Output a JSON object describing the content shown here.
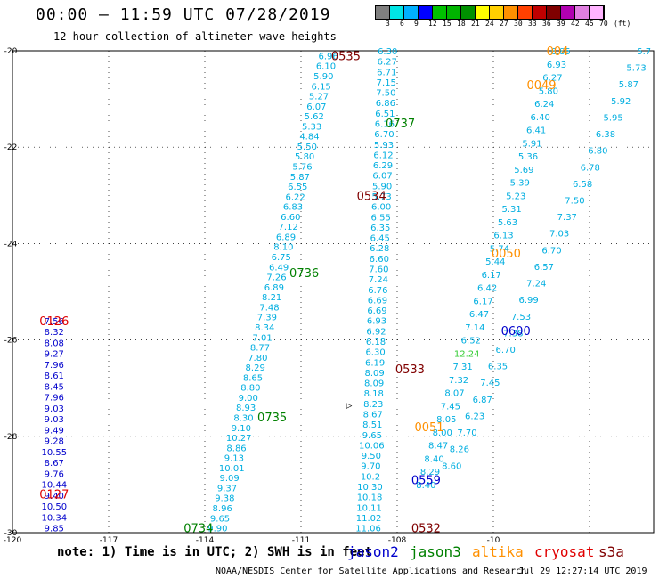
{
  "header": {
    "title": "00:00 – 11:59 UTC 07/28/2019",
    "subtitle": "12 hour collection of altimeter wave heights"
  },
  "legend": {
    "colors": [
      "#7f7f7f",
      "#00e5e5",
      "#00b0ff",
      "#0000ff",
      "#00c000",
      "#00b400",
      "#009000",
      "#ffff00",
      "#ffd000",
      "#ff9000",
      "#ff4000",
      "#c00000",
      "#7f0000",
      "#b000b0",
      "#e07fe0",
      "#ffb4ff"
    ],
    "ticks": [
      "3",
      "6",
      "9",
      "12",
      "15",
      "18",
      "21",
      "24",
      "27",
      "30",
      "33",
      "36",
      "39",
      "42",
      "45",
      "70",
      "(ft)"
    ]
  },
  "axes": {
    "lon_labels": [
      "-120",
      "-117",
      "-114",
      "-111",
      "-108",
      "-10"
    ],
    "lat_labels": [
      "-20",
      "-22",
      "-24",
      "-26",
      "-28",
      "-30"
    ]
  },
  "passes": [
    {
      "label": "0126",
      "color": "#e00000",
      "lon": -118.7,
      "lat": -25.6
    },
    {
      "label": "0127",
      "color": "#e00000",
      "lon": -118.7,
      "lat": -29.2
    },
    {
      "label": "0535",
      "color": "#800000",
      "lon": -109.6,
      "lat": -20.1
    },
    {
      "label": "0534",
      "color": "#800000",
      "lon": -108.8,
      "lat": -23.0
    },
    {
      "label": "0533",
      "color": "#800000",
      "lon": -107.6,
      "lat": -26.6
    },
    {
      "label": "0532",
      "color": "#800000",
      "lon": -107.1,
      "lat": -29.9
    },
    {
      "label": "0737",
      "color": "#008000",
      "lon": -107.9,
      "lat": -21.5
    },
    {
      "label": "0736",
      "color": "#008000",
      "lon": -110.9,
      "lat": -24.6
    },
    {
      "label": "0735",
      "color": "#008000",
      "lon": -111.9,
      "lat": -27.6
    },
    {
      "label": "0734",
      "color": "#008000",
      "lon": -114.2,
      "lat": -29.9
    },
    {
      "label": "0559",
      "color": "#0000cc",
      "lon": -107.1,
      "lat": -28.9
    },
    {
      "label": "0600",
      "color": "#0000cc",
      "lon": -104.3,
      "lat": -25.8
    },
    {
      "label": "0051",
      "color": "#ff9000",
      "lon": -107.0,
      "lat": -27.8
    },
    {
      "label": "0050",
      "color": "#ff9000",
      "lon": -104.6,
      "lat": -24.2
    },
    {
      "label": "0049",
      "color": "#ff9000",
      "lon": -103.5,
      "lat": -20.7
    },
    {
      "label": "004",
      "color": "#ff9000",
      "lon": -103.0,
      "lat": -20.0
    }
  ],
  "tracks": [
    {
      "color": "#00aee0",
      "start": [
        -110.15,
        -20.1
      ],
      "end": [
        -113.6,
        -29.9
      ],
      "values": [
        "6.96",
        "6.10",
        "5.90",
        "6.15",
        "5.27",
        "6.07",
        "5.62",
        "5.33",
        "4.84",
        "5.50",
        "5.80",
        "5.76",
        "5.87",
        "6.55",
        "6.22",
        "6.83",
        "6.60",
        "7.12",
        "6.89",
        "8.10",
        "6.75",
        "6.49",
        "7.26",
        "6.89",
        "8.21",
        "7.48",
        "7.39",
        "8.34",
        "7.01",
        "8.77",
        "7.80",
        "8.29",
        "8.65",
        "8.80",
        "9.00",
        "8.93",
        "8.30",
        "9.10",
        "10.27",
        "8.86",
        "9.13",
        "10.01",
        "9.09",
        "9.37",
        "9.38",
        "8.96",
        "9.65",
        "9.90"
      ]
    },
    {
      "color": "#00aee0",
      "start": [
        -108.3,
        -20.0
      ],
      "end": [
        -108.9,
        -29.9
      ],
      "values": [
        "6.30",
        "6.27",
        "6.71",
        "7.15",
        "7.50",
        "6.86",
        "6.51",
        "6.16",
        "6.70",
        "5.93",
        "6.12",
        "6.29",
        "6.07",
        "5.90",
        "5.73",
        "6.00",
        "6.55",
        "6.35",
        "6.45",
        "6.28",
        "6.60",
        "7.60",
        "7.24",
        "6.76",
        "6.69",
        "6.69",
        "6.93",
        "6.92",
        "6.18",
        "6.30",
        "6.19",
        "8.09",
        "8.09",
        "8.18",
        "8.23",
        "8.67",
        "8.51",
        "9.65",
        "10.06",
        "9.50",
        "9.70",
        "10.2",
        "10.30",
        "10.18",
        "10.11",
        "11.02",
        "11.06"
      ]
    },
    {
      "color": "#00aee0",
      "start": [
        -102.9,
        -20.0
      ],
      "end": [
        -107.1,
        -29.0
      ],
      "values": [
        "6.85",
        "6.93",
        "6.27",
        "5.80",
        "6.24",
        "6.40",
        "6.41",
        "5.91",
        "5.36",
        "5.69",
        "5.39",
        "5.23",
        "5.31",
        "5.63",
        "6.13",
        "5.74",
        "5.44",
        "6.17",
        "6.42",
        "6.17",
        "6.47",
        "7.14",
        "6.52",
        "12.24",
        "7.31",
        "7.32",
        "8.07",
        "7.45",
        "8.05",
        "8.00",
        "8.47",
        "8.40",
        "8.29",
        "8.40"
      ]
    },
    {
      "color": "#00aee0",
      "start": [
        -100.3,
        -20.0
      ],
      "end": [
        -106.3,
        -28.6
      ],
      "values": [
        "5.7",
        "5.73",
        "5.87",
        "5.92",
        "5.95",
        "6.38",
        "6.80",
        "6.78",
        "6.58",
        "7.50",
        "7.37",
        "7.03",
        "6.70",
        "6.57",
        "7.24",
        "6.99",
        "7.53",
        "7.38",
        "6.70",
        "6.35",
        "7.45",
        "6.87",
        "6.23",
        "7.70",
        "8.26",
        "8.60"
      ]
    },
    {
      "color": "#0000cc",
      "start": [
        -118.7,
        -25.6
      ],
      "end": [
        -118.7,
        -29.9
      ],
      "values": [
        "7.56",
        "8.32",
        "8.08",
        "9.27",
        "7.96",
        "8.61",
        "8.45",
        "7.96",
        "9.03",
        "9.03",
        "9.49",
        "9.28",
        "10.55",
        "8.67",
        "9.76",
        "10.44",
        "9.40",
        "10.50",
        "10.34",
        "9.85"
      ]
    }
  ],
  "ship_marker": {
    "symbol": "▷"
  },
  "note": "note: 1) Time is in UTC; 2) SWH is in feet",
  "satellites": [
    {
      "name": "jason2",
      "color": "#0000cc"
    },
    {
      "name": "jason3",
      "color": "#008000"
    },
    {
      "name": "altika",
      "color": "#ff9000"
    },
    {
      "name": "cryosat",
      "color": "#e00000"
    },
    {
      "name": "s3a",
      "color": "#800000"
    }
  ],
  "footer": {
    "center": "NOAA/NESDIS Center for Satellite Applications and Research",
    "timestamp": "Jul 29 12:27:14 UTC 2019"
  }
}
